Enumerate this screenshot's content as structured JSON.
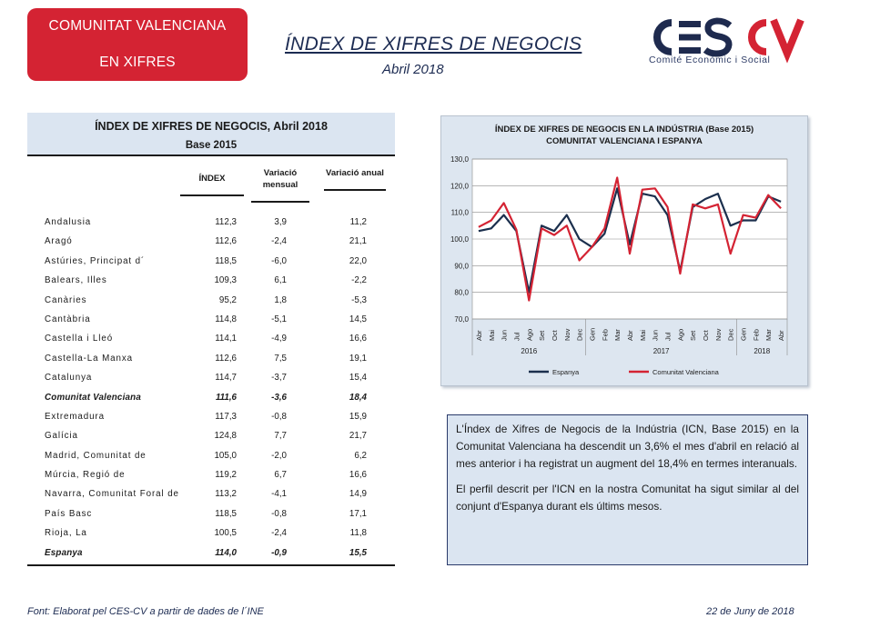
{
  "badge": {
    "line1": "COMUNITAT VALENCIANA",
    "line2": "EN XIFRES"
  },
  "header": {
    "title": "ÍNDEX DE XIFRES DE NEGOCIS",
    "subtitle": "Abril 2018"
  },
  "logo": {
    "wordmark": "CESCV",
    "tagline": "Comité Econòmic i Social",
    "colors": {
      "ces": "#1e2a4e",
      "cv": "#d42333"
    }
  },
  "table": {
    "title": "ÍNDEX DE XIFRES DE NEGOCIS, Abril 2018",
    "base": "Base 2015",
    "columns": {
      "index": "ÍNDEX",
      "monthly": "Variació mensual",
      "annual": "Variació anual"
    },
    "rows": [
      {
        "name": "Andalusia",
        "index": "112,3",
        "monthly": "3,9",
        "annual": "11,2"
      },
      {
        "name": "Aragó",
        "index": "112,6",
        "monthly": "-2,4",
        "annual": "21,1"
      },
      {
        "name": "Astúries, Principat d´",
        "index": "118,5",
        "monthly": "-6,0",
        "annual": "22,0"
      },
      {
        "name": "Balears, Illes",
        "index": "109,3",
        "monthly": "6,1",
        "annual": "-2,2"
      },
      {
        "name": "Canàries",
        "index": "95,2",
        "monthly": "1,8",
        "annual": "-5,3"
      },
      {
        "name": "Cantàbria",
        "index": "114,8",
        "monthly": "-5,1",
        "annual": "14,5"
      },
      {
        "name": "Castella i Lleó",
        "index": "114,1",
        "monthly": "-4,9",
        "annual": "16,6"
      },
      {
        "name": "Castella-La Manxa",
        "index": "112,6",
        "monthly": "7,5",
        "annual": "19,1"
      },
      {
        "name": "Catalunya",
        "index": "114,7",
        "monthly": "-3,7",
        "annual": "15,4"
      },
      {
        "name": "Comunitat Valenciana",
        "index": "111,6",
        "monthly": "-3,6",
        "annual": "18,4",
        "bold": true
      },
      {
        "name": "Extremadura",
        "index": "117,3",
        "monthly": "-0,8",
        "annual": "15,9"
      },
      {
        "name": "Galícia",
        "index": "124,8",
        "monthly": "7,7",
        "annual": "21,7"
      },
      {
        "name": "Madrid, Comunitat de",
        "index": "105,0",
        "monthly": "-2,0",
        "annual": "6,2"
      },
      {
        "name": "Múrcia, Regió de",
        "index": "119,2",
        "monthly": "6,7",
        "annual": "16,6"
      },
      {
        "name": "Navarra, Comunitat Foral de",
        "index": "113,2",
        "monthly": "-4,1",
        "annual": "14,9"
      },
      {
        "name": "País Basc",
        "index": "118,5",
        "monthly": "-0,8",
        "annual": "17,1"
      },
      {
        "name": "Rioja, La",
        "index": "100,5",
        "monthly": "-2,4",
        "annual": "11,8"
      },
      {
        "name": "Espanya",
        "index": "114,0",
        "monthly": "-0,9",
        "annual": "15,5",
        "bold": true
      }
    ]
  },
  "chart_data": {
    "type": "line",
    "title": "ÍNDEX DE XIFRES DE NEGOCIS EN LA INDÚSTRIA (Base 2015)",
    "subtitle": "COMUNITAT VALENCIANA I ESPANYA",
    "x": [
      "Abr",
      "Mai",
      "Jun",
      "Jul",
      "Ago",
      "Set",
      "Oct",
      "Nov",
      "Dec",
      "Gen",
      "Feb",
      "Mar",
      "Abr",
      "Mai",
      "Jun",
      "Jul",
      "Ago",
      "Set",
      "Oct",
      "Nov",
      "Dec",
      "Gen",
      "Feb",
      "Mar",
      "Abr"
    ],
    "year_groups": [
      {
        "label": "2016",
        "from": 0,
        "to": 8
      },
      {
        "label": "2017",
        "from": 9,
        "to": 20
      },
      {
        "label": "2018",
        "from": 21,
        "to": 24
      }
    ],
    "yticks": [
      "70,0",
      "80,0",
      "90,0",
      "100,0",
      "110,0",
      "120,0",
      "130,0"
    ],
    "ylim": [
      70,
      130
    ],
    "grid": true,
    "legend_position": "bottom",
    "series": [
      {
        "name": "Espanya",
        "color": "#1b2f4d",
        "values": [
          103,
          104,
          109,
          103,
          80,
          105,
          103,
          109,
          100,
          97,
          102,
          119,
          98,
          117,
          116,
          109,
          88,
          112,
          115,
          117,
          105,
          107,
          107,
          116,
          114
        ]
      },
      {
        "name": "Comunitat Valenciana",
        "color": "#d42333",
        "values": [
          104.5,
          107,
          113.5,
          103.5,
          77,
          104,
          101.5,
          105,
          92,
          97,
          104,
          123,
          94.5,
          118.5,
          119,
          112,
          87,
          113,
          111.5,
          113,
          94.5,
          109,
          108,
          116.5,
          111.5
        ]
      }
    ]
  },
  "note": {
    "p1": "L'Índex de Xifres de Negocis de la Indústria (ICN, Base 2015) en la Comunitat Valenciana ha descendit un 3,6% el mes d'abril en relació al mes anterior i ha registrat un augment del 18,4% en termes interanuals.",
    "p2": "El perfil descrit per l'ICN en la nostra Comunitat ha sigut similar al del conjunt d'Espanya durant els últims mesos."
  },
  "footer": {
    "source": "Font: Elaborat pel CES-CV a partir de dades de l´INE",
    "date": "22  de Juny de 2018"
  }
}
